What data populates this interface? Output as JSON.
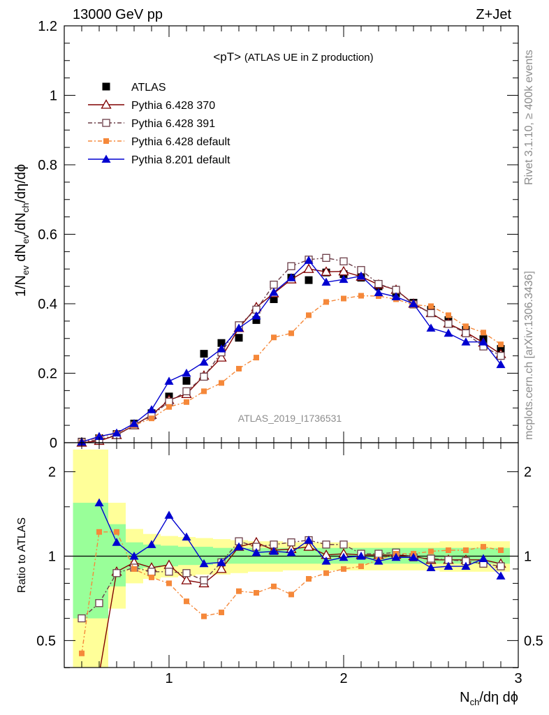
{
  "header": {
    "left": "13000 GeV pp",
    "right": "Z+Jet"
  },
  "side_labels": {
    "rivet": "Rivet 3.1.10, ≥ 400k events",
    "mcplots": "mcplots.cern.ch [arXiv:1306.3436]"
  },
  "watermark": "ATLAS_2019_I1736531",
  "chart_data": [
    {
      "type": "scatter",
      "panel": "main",
      "title": "<pT>",
      "title_detail": "(ATLAS UE in Z production)",
      "ylabel": "1/N_ev dN_ev/dN_ch/dη/dϕ",
      "xlim": [
        0.4,
        3.0
      ],
      "ylim": [
        0,
        1.2
      ],
      "y_ticks": [
        "0",
        "0.2",
        "0.4",
        "0.6",
        "0.8",
        "1",
        "1.2"
      ],
      "legend_position": "top-left",
      "x": [
        0.5,
        0.6,
        0.7,
        0.8,
        0.9,
        1.0,
        1.1,
        1.2,
        1.3,
        1.4,
        1.5,
        1.6,
        1.7,
        1.8,
        1.9,
        2.0,
        2.1,
        2.2,
        2.3,
        2.4,
        2.5,
        2.6,
        2.7,
        2.8,
        2.9
      ],
      "series": [
        {
          "name": "ATLAS",
          "color": "#000000",
          "marker": "filled-square",
          "line": "none",
          "values": [
            0.003,
            0.013,
            0.025,
            0.055,
            0.085,
            0.133,
            0.178,
            0.256,
            0.287,
            0.302,
            0.353,
            0.413,
            0.475,
            0.468,
            0.49,
            0.485,
            0.475,
            0.45,
            0.43,
            0.403,
            0.383,
            0.353,
            0.325,
            0.298,
            0.27
          ]
        },
        {
          "name": "Pythia 6.428 370",
          "color": "#800000",
          "marker": "open-triangle",
          "line": "solid",
          "values": [
            0.0,
            0.005,
            0.022,
            0.05,
            0.08,
            0.123,
            0.14,
            0.193,
            0.245,
            0.33,
            0.39,
            0.43,
            0.47,
            0.5,
            0.492,
            0.493,
            0.478,
            0.455,
            0.44,
            0.4,
            0.373,
            0.343,
            0.318,
            0.288,
            0.255
          ]
        },
        {
          "name": "Pythia 6.428 391",
          "color": "#6b3d47",
          "marker": "open-square",
          "line": "dashdot",
          "values": [
            0.002,
            0.009,
            0.022,
            0.05,
            0.078,
            0.118,
            0.148,
            0.19,
            0.26,
            0.338,
            0.383,
            0.455,
            0.508,
            0.527,
            0.532,
            0.522,
            0.497,
            0.457,
            0.44,
            0.398,
            0.373,
            0.342,
            0.315,
            0.277,
            0.25
          ]
        },
        {
          "name": "Pythia 6.428 default",
          "color": "#f5883a",
          "marker": "filled-square-small",
          "line": "dashdot",
          "values": [
            0.001,
            0.016,
            0.027,
            0.05,
            0.07,
            0.103,
            0.117,
            0.148,
            0.172,
            0.213,
            0.245,
            0.303,
            0.315,
            0.367,
            0.405,
            0.415,
            0.423,
            0.422,
            0.413,
            0.397,
            0.393,
            0.367,
            0.335,
            0.317,
            0.283
          ]
        },
        {
          "name": "Pythia 8.201 default",
          "color": "#0000d0",
          "marker": "filled-triangle",
          "line": "solid",
          "values": [
            0.002,
            0.018,
            0.028,
            0.055,
            0.095,
            0.177,
            0.2,
            0.232,
            0.27,
            0.33,
            0.365,
            0.433,
            0.475,
            0.525,
            0.462,
            0.47,
            0.48,
            0.432,
            0.42,
            0.4,
            0.33,
            0.315,
            0.29,
            0.29,
            0.225
          ]
        }
      ]
    },
    {
      "type": "scatter",
      "panel": "ratio",
      "xlabel": "N_ch/dη dϕ",
      "ylabel": "Ratio to ATLAS",
      "xlim": [
        0.4,
        3.0
      ],
      "ylim": [
        0.4,
        2.4
      ],
      "x_ticks": [
        "1",
        "2",
        "3"
      ],
      "y_ticks": [
        "0.5",
        "1",
        "2"
      ],
      "reference_line": 1,
      "x": [
        0.5,
        0.6,
        0.7,
        0.8,
        0.9,
        1.0,
        1.1,
        1.2,
        1.3,
        1.4,
        1.5,
        1.6,
        1.7,
        1.8,
        1.9,
        2.0,
        2.1,
        2.2,
        2.3,
        2.4,
        2.5,
        2.6,
        2.7,
        2.8,
        2.9
      ],
      "bands": {
        "yellow": [
          [
            0.4,
            2.4
          ],
          [
            0.4,
            2.4
          ],
          [
            0.65,
            1.55
          ],
          [
            0.8,
            1.25
          ],
          [
            0.83,
            1.2
          ],
          [
            0.84,
            1.18
          ],
          [
            0.85,
            1.17
          ],
          [
            0.86,
            1.16
          ],
          [
            0.86,
            1.15
          ],
          [
            0.87,
            1.14
          ],
          [
            0.88,
            1.13
          ],
          [
            0.88,
            1.13
          ],
          [
            0.89,
            1.12
          ],
          [
            0.89,
            1.12
          ],
          [
            0.89,
            1.12
          ],
          [
            0.89,
            1.12
          ],
          [
            0.89,
            1.12
          ],
          [
            0.89,
            1.12
          ],
          [
            0.89,
            1.12
          ],
          [
            0.89,
            1.12
          ],
          [
            0.89,
            1.12
          ],
          [
            0.88,
            1.13
          ],
          [
            0.88,
            1.13
          ],
          [
            0.88,
            1.13
          ],
          [
            0.88,
            1.13
          ]
        ],
        "green": [
          [
            0.6,
            1.55
          ],
          [
            0.6,
            1.55
          ],
          [
            0.78,
            1.3
          ],
          [
            0.9,
            1.12
          ],
          [
            0.91,
            1.1
          ],
          [
            0.92,
            1.09
          ],
          [
            0.93,
            1.08
          ],
          [
            0.93,
            1.08
          ],
          [
            0.94,
            1.07
          ],
          [
            0.94,
            1.07
          ],
          [
            0.94,
            1.07
          ],
          [
            0.94,
            1.07
          ],
          [
            0.94,
            1.07
          ],
          [
            0.94,
            1.07
          ],
          [
            0.94,
            1.07
          ],
          [
            0.94,
            1.07
          ],
          [
            0.94,
            1.07
          ],
          [
            0.94,
            1.07
          ],
          [
            0.94,
            1.07
          ],
          [
            0.94,
            1.07
          ],
          [
            0.94,
            1.07
          ],
          [
            0.94,
            1.07
          ],
          [
            0.94,
            1.07
          ],
          [
            0.94,
            1.07
          ],
          [
            0.94,
            1.07
          ]
        ]
      },
      "series": [
        {
          "name": "Pythia 6.428 370",
          "color": "#800000",
          "marker": "open-triangle",
          "line": "solid",
          "values": [
            null,
            0.38,
            0.88,
            0.95,
            0.91,
            0.93,
            0.82,
            0.8,
            0.9,
            1.08,
            1.12,
            1.05,
            1.06,
            1.08,
            1.01,
            1.02,
            1.01,
            1.01,
            1.01,
            1.0,
            0.97,
            0.97,
            0.97,
            0.97,
            0.94
          ]
        },
        {
          "name": "Pythia 6.428 391",
          "color": "#6b3d47",
          "marker": "open-square",
          "line": "dashdot",
          "values": [
            0.6,
            0.68,
            0.87,
            0.91,
            0.88,
            0.88,
            0.87,
            0.82,
            0.95,
            1.13,
            1.08,
            1.1,
            1.12,
            1.14,
            1.1,
            1.1,
            1.02,
            1.02,
            1.03,
            0.99,
            0.98,
            0.97,
            0.96,
            0.94,
            0.92
          ]
        },
        {
          "name": "Pythia 6.428 default",
          "color": "#f5883a",
          "marker": "filled-square-small",
          "line": "dashdot",
          "values": [
            0.45,
            1.22,
            1.22,
            0.9,
            0.84,
            0.8,
            0.69,
            0.61,
            0.63,
            0.75,
            0.74,
            0.78,
            0.73,
            0.83,
            0.87,
            0.9,
            0.92,
            0.97,
            1.02,
            1.02,
            1.04,
            1.05,
            1.05,
            1.08,
            1.05
          ]
        },
        {
          "name": "Pythia 8.201 default",
          "color": "#0000d0",
          "marker": "filled-triangle",
          "line": "solid",
          "values": [
            null,
            1.55,
            1.12,
            1.0,
            1.1,
            1.4,
            1.17,
            0.94,
            0.95,
            1.08,
            1.03,
            1.04,
            1.03,
            1.14,
            0.96,
            0.99,
            1.0,
            0.96,
            0.99,
            0.99,
            0.91,
            0.92,
            0.92,
            0.98,
            0.85
          ]
        }
      ]
    }
  ]
}
